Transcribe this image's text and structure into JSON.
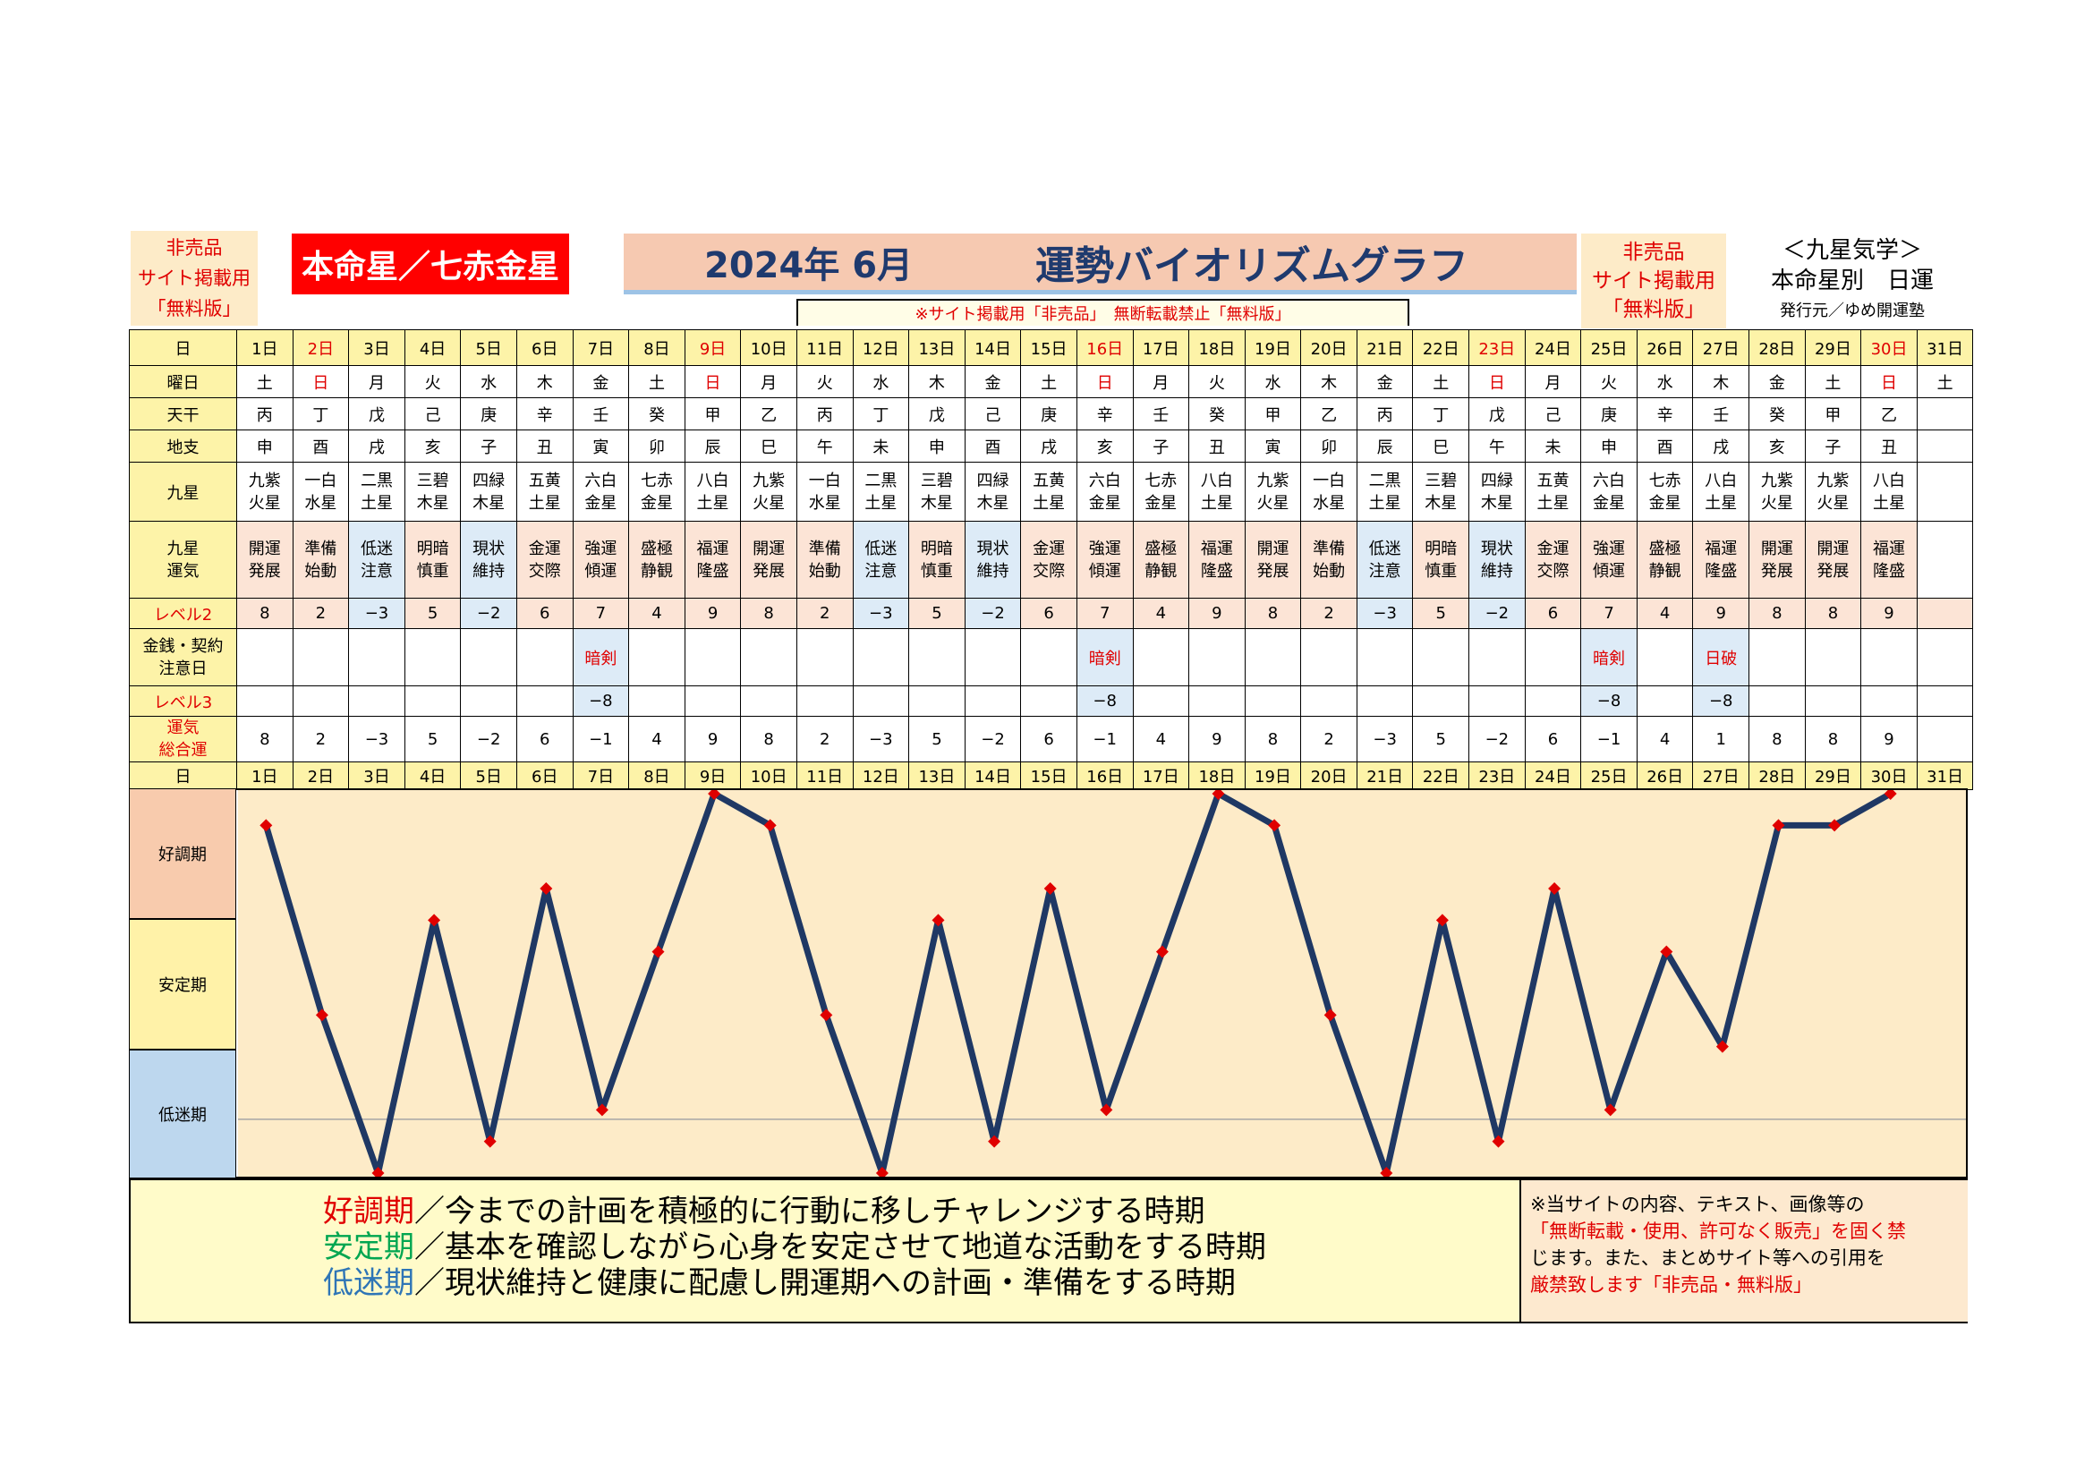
{
  "header": {
    "not_for_sale_left": [
      "非売品",
      "サイト掲載用",
      "「無料版」"
    ],
    "honmeisei": "本命星／七赤金星",
    "year_month": "2024年 6月",
    "title": "運勢バイオリズムグラフ",
    "not_for_sale_right": [
      "非売品",
      "サイト掲載用",
      "「無料版」"
    ],
    "kyusei_title": "＜九星気学＞",
    "kyusei_sub": "本命星別　日運",
    "publisher": "発行元／ゆめ開運塾",
    "notice": "※サイト掲載用「非売品」　無断転載禁止「無料版」"
  },
  "table": {
    "row_labels": {
      "day": "日",
      "weekday": "曜日",
      "tenkan": "天干",
      "chishi": "地支",
      "kyusei": "九星",
      "kyusei_unki": [
        "九星",
        "運気"
      ],
      "level2": "レベル2",
      "money": [
        "金銭・契約",
        "注意日"
      ],
      "level3": "レベル3",
      "total": [
        "運気",
        "総合運"
      ]
    },
    "days": [
      "1日",
      "2日",
      "3日",
      "4日",
      "5日",
      "6日",
      "7日",
      "8日",
      "9日",
      "10日",
      "11日",
      "12日",
      "13日",
      "14日",
      "15日",
      "16日",
      "17日",
      "18日",
      "19日",
      "20日",
      "21日",
      "22日",
      "23日",
      "24日",
      "25日",
      "26日",
      "27日",
      "28日",
      "29日",
      "30日",
      "31日"
    ],
    "weekdays": [
      "土",
      "日",
      "月",
      "火",
      "水",
      "木",
      "金",
      "土",
      "日",
      "月",
      "火",
      "水",
      "木",
      "金",
      "土",
      "日",
      "月",
      "火",
      "水",
      "木",
      "金",
      "土",
      "日",
      "月",
      "火",
      "水",
      "木",
      "金",
      "土",
      "日",
      "土"
    ],
    "tenkan": [
      "丙",
      "丁",
      "戊",
      "己",
      "庚",
      "辛",
      "壬",
      "癸",
      "甲",
      "乙",
      "丙",
      "丁",
      "戊",
      "己",
      "庚",
      "辛",
      "壬",
      "癸",
      "甲",
      "乙",
      "丙",
      "丁",
      "戊",
      "己",
      "庚",
      "辛",
      "壬",
      "癸",
      "甲",
      "乙",
      ""
    ],
    "chishi": [
      "申",
      "酉",
      "戌",
      "亥",
      "子",
      "丑",
      "寅",
      "卯",
      "辰",
      "巳",
      "午",
      "未",
      "申",
      "酉",
      "戌",
      "亥",
      "子",
      "丑",
      "寅",
      "卯",
      "辰",
      "巳",
      "午",
      "未",
      "申",
      "酉",
      "戌",
      "亥",
      "子",
      "丑",
      ""
    ],
    "kyusei": [
      [
        "九紫",
        "火星"
      ],
      [
        "一白",
        "水星"
      ],
      [
        "二黒",
        "土星"
      ],
      [
        "三碧",
        "木星"
      ],
      [
        "四緑",
        "木星"
      ],
      [
        "五黄",
        "土星"
      ],
      [
        "六白",
        "金星"
      ],
      [
        "七赤",
        "金星"
      ],
      [
        "八白",
        "土星"
      ],
      [
        "九紫",
        "火星"
      ],
      [
        "一白",
        "水星"
      ],
      [
        "二黒",
        "土星"
      ],
      [
        "三碧",
        "木星"
      ],
      [
        "四緑",
        "木星"
      ],
      [
        "五黄",
        "土星"
      ],
      [
        "六白",
        "金星"
      ],
      [
        "七赤",
        "金星"
      ],
      [
        "八白",
        "土星"
      ],
      [
        "九紫",
        "火星"
      ],
      [
        "一白",
        "水星"
      ],
      [
        "二黒",
        "土星"
      ],
      [
        "三碧",
        "木星"
      ],
      [
        "四緑",
        "木星"
      ],
      [
        "五黄",
        "土星"
      ],
      [
        "六白",
        "金星"
      ],
      [
        "七赤",
        "金星"
      ],
      [
        "八白",
        "土星"
      ],
      [
        "九紫",
        "火星"
      ],
      [
        "九紫",
        "火星"
      ],
      [
        "八白",
        "土星"
      ],
      [
        "",
        ""
      ]
    ],
    "unki": [
      [
        "開運",
        "発展"
      ],
      [
        "準備",
        "始動"
      ],
      [
        "低迷",
        "注意"
      ],
      [
        "明暗",
        "慎重"
      ],
      [
        "現状",
        "維持"
      ],
      [
        "金運",
        "交際"
      ],
      [
        "強運",
        "傾運"
      ],
      [
        "盛極",
        "静観"
      ],
      [
        "福運",
        "隆盛"
      ],
      [
        "開運",
        "発展"
      ],
      [
        "準備",
        "始動"
      ],
      [
        "低迷",
        "注意"
      ],
      [
        "明暗",
        "慎重"
      ],
      [
        "現状",
        "維持"
      ],
      [
        "金運",
        "交際"
      ],
      [
        "強運",
        "傾運"
      ],
      [
        "盛極",
        "静観"
      ],
      [
        "福運",
        "隆盛"
      ],
      [
        "開運",
        "発展"
      ],
      [
        "準備",
        "始動"
      ],
      [
        "低迷",
        "注意"
      ],
      [
        "明暗",
        "慎重"
      ],
      [
        "現状",
        "維持"
      ],
      [
        "金運",
        "交際"
      ],
      [
        "強運",
        "傾運"
      ],
      [
        "盛極",
        "静観"
      ],
      [
        "福運",
        "隆盛"
      ],
      [
        "開運",
        "発展"
      ],
      [
        "開運",
        "発展"
      ],
      [
        "福運",
        "隆盛"
      ],
      [
        "",
        ""
      ]
    ],
    "level2": [
      "8",
      "2",
      "−3",
      "5",
      "−2",
      "6",
      "7",
      "4",
      "9",
      "8",
      "2",
      "−3",
      "5",
      "−2",
      "6",
      "7",
      "4",
      "9",
      "8",
      "2",
      "−3",
      "5",
      "−2",
      "6",
      "7",
      "4",
      "9",
      "8",
      "8",
      "9",
      ""
    ],
    "money": [
      "",
      "",
      "",
      "",
      "",
      "",
      "暗剣",
      "",
      "",
      "",
      "",
      "",
      "",
      "",
      "",
      "暗剣",
      "",
      "",
      "",
      "",
      "",
      "",
      "",
      "",
      "暗剣",
      "",
      "日破",
      "",
      "",
      "",
      ""
    ],
    "level3": [
      "",
      "",
      "",
      "",
      "",
      "",
      "−8",
      "",
      "",
      "",
      "",
      "",
      "",
      "",
      "",
      "−8",
      "",
      "",
      "",
      "",
      "",
      "",
      "",
      "",
      "−8",
      "",
      "−8",
      "",
      "",
      "",
      ""
    ],
    "total": [
      "8",
      "2",
      "−3",
      "5",
      "−2",
      "6",
      "−1",
      "4",
      "9",
      "8",
      "2",
      "−3",
      "5",
      "−2",
      "6",
      "−1",
      "4",
      "9",
      "8",
      "2",
      "−3",
      "5",
      "−2",
      "6",
      "−1",
      "4",
      "1",
      "8",
      "8",
      "9",
      ""
    ]
  },
  "zones": {
    "good": "好調期",
    "stable": "安定期",
    "low": "低迷期"
  },
  "colors": {
    "line": "#1f3864",
    "marker": "#e00000",
    "good_bg": "#f8cbad",
    "stable_bg": "#fff2a8",
    "low_bg": "#bdd7ee",
    "chart_bg": "#fdebc8"
  },
  "chart_data": {
    "type": "line",
    "title": "運勢バイオリズムグラフ",
    "xlabel": "",
    "ylabel": "",
    "categories": [
      "1日",
      "2日",
      "3日",
      "4日",
      "5日",
      "6日",
      "7日",
      "8日",
      "9日",
      "10日",
      "11日",
      "12日",
      "13日",
      "14日",
      "15日",
      "16日",
      "17日",
      "18日",
      "19日",
      "20日",
      "21日",
      "22日",
      "23日",
      "24日",
      "25日",
      "26日",
      "27日",
      "28日",
      "29日",
      "30日"
    ],
    "series": [
      {
        "values": [
          8,
          2,
          -3,
          5,
          -2,
          6,
          -1,
          4,
          9,
          8,
          2,
          -3,
          5,
          -2,
          6,
          -1,
          4,
          9,
          8,
          2,
          -3,
          5,
          -2,
          6,
          -1,
          4,
          1,
          8,
          8,
          9
        ]
      }
    ],
    "ylim": [
      -3,
      9
    ],
    "grid": false,
    "legend": "none"
  },
  "footer": {
    "legend": [
      {
        "term": "好調期",
        "text": "／今までの計画を積極的に行動に移しチャレンジする時期",
        "color": "#e00000"
      },
      {
        "term": "安定期",
        "text": "／基本を確認しながら心身を安定させて地道な活動をする時期",
        "color": "#00a651"
      },
      {
        "term": "低迷期",
        "text": "／現状維持と健康に配慮し開運期への計画・準備をする時期",
        "color": "#2e75b6"
      }
    ],
    "copyright_lines": [
      "※当サイトの内容、テキスト、画像等の",
      "「無断転載・使用、許可なく販売」を固く禁",
      "じます。また、まとめサイト等への引用を",
      "厳禁致します「非売品・無料版」"
    ]
  }
}
